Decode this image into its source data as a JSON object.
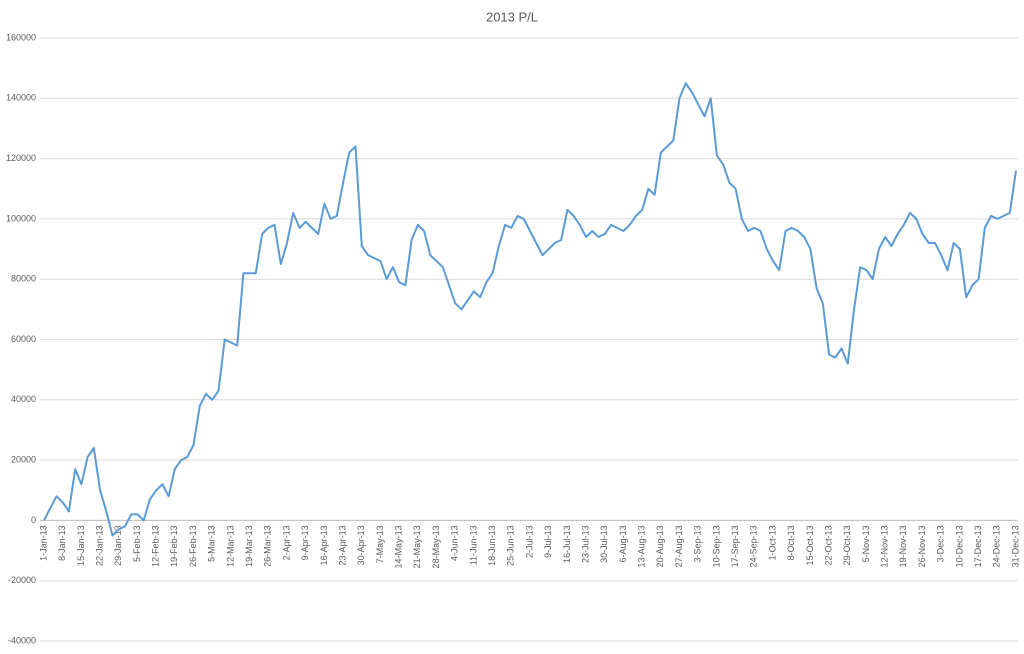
{
  "chart_data": {
    "type": "line",
    "title": "2013 P/L",
    "categories": [
      "1-Jan-13",
      null,
      null,
      "8-Jan-13",
      null,
      null,
      "15-Jan-13",
      null,
      null,
      "22-Jan-13",
      null,
      null,
      "29-Jan-13",
      null,
      null,
      "5-Feb-13",
      null,
      null,
      "12-Feb-13",
      null,
      null,
      "19-Feb-13",
      null,
      null,
      "26-Feb-13",
      null,
      null,
      "5-Mar-13",
      null,
      null,
      "12-Mar-13",
      null,
      null,
      "19-Mar-13",
      null,
      null,
      "26-Mar-13",
      null,
      null,
      "2-Apr-13",
      null,
      null,
      "9-Apr-13",
      null,
      null,
      "16-Apr-13",
      null,
      null,
      "23-Apr-13",
      null,
      null,
      "30-Apr-13",
      null,
      null,
      "7-May-13",
      null,
      null,
      "14-May-13",
      null,
      null,
      "21-May-13",
      null,
      null,
      "28-May-13",
      null,
      null,
      "4-Jun-13",
      null,
      null,
      "11-Jun-13",
      null,
      null,
      "18-Jun-13",
      null,
      null,
      "25-Jun-13",
      null,
      null,
      "2-Jul-13",
      null,
      null,
      "9-Jul-13",
      null,
      null,
      "16-Jul-13",
      null,
      null,
      "23-Jul-13",
      null,
      null,
      "30-Jul-13",
      null,
      null,
      "6-Aug-13",
      null,
      null,
      "13-Aug-13",
      null,
      null,
      "20-Aug-13",
      null,
      null,
      "27-Aug-13",
      null,
      null,
      "3-Sep-13",
      null,
      null,
      "10-Sep-13",
      null,
      null,
      "17-Sep-13",
      null,
      null,
      "24-Sep-13",
      null,
      null,
      "1-Oct-13",
      null,
      null,
      "8-Oct-13",
      null,
      null,
      "15-Oct-13",
      null,
      null,
      "22-Oct-13",
      null,
      null,
      "29-Oct-13",
      null,
      null,
      "5-Nov-13",
      null,
      null,
      "12-Nov-13",
      null,
      null,
      "19-Nov-13",
      null,
      null,
      "26-Nov-13",
      null,
      null,
      "3-Dec-13",
      null,
      null,
      "10-Dec-13",
      null,
      null,
      "17-Dec-13",
      null,
      null,
      "24-Dec-13",
      null,
      null,
      "31-Dec-13"
    ],
    "values": [
      0,
      4000,
      8000,
      6000,
      3000,
      17000,
      12000,
      21000,
      24000,
      10000,
      3000,
      -5000,
      -3000,
      -2000,
      2000,
      2000,
      0,
      7000,
      10000,
      12000,
      8000,
      17000,
      20000,
      21000,
      25000,
      38000,
      42000,
      40000,
      43000,
      60000,
      59000,
      58000,
      82000,
      82000,
      82000,
      95000,
      97000,
      98000,
      85000,
      92000,
      102000,
      97000,
      99000,
      97000,
      95000,
      105000,
      100000,
      101000,
      112000,
      122000,
      124000,
      91000,
      88000,
      87000,
      86000,
      80000,
      84000,
      79000,
      78000,
      93000,
      98000,
      96000,
      88000,
      86000,
      84000,
      78000,
      72000,
      70000,
      73000,
      76000,
      74000,
      79000,
      82000,
      91000,
      98000,
      97000,
      101000,
      100000,
      96000,
      92000,
      88000,
      90000,
      92000,
      93000,
      103000,
      101000,
      98000,
      94000,
      96000,
      94000,
      95000,
      98000,
      97000,
      96000,
      98000,
      101000,
      103000,
      110000,
      108000,
      122000,
      124000,
      126000,
      140000,
      145000,
      142000,
      138000,
      134000,
      140000,
      121000,
      118000,
      112000,
      110000,
      100000,
      96000,
      97000,
      96000,
      90000,
      86000,
      83000,
      96000,
      97000,
      96000,
      94000,
      90000,
      77000,
      72000,
      55000,
      54000,
      57000,
      52000,
      70000,
      84000,
      83000,
      80000,
      90000,
      94000,
      91000,
      95000,
      98000,
      102000,
      100000,
      95000,
      92000,
      92000,
      88000,
      83000,
      92000,
      90000,
      74000,
      78000,
      80000,
      97000,
      101000,
      100000,
      101000,
      102000,
      116000
    ],
    "color": "#5b9bd5",
    "ylim": [
      -40000,
      160000
    ],
    "yticks": [
      -40000,
      -20000,
      0,
      20000,
      40000,
      60000,
      80000,
      100000,
      120000,
      140000,
      160000
    ],
    "grid": true
  }
}
